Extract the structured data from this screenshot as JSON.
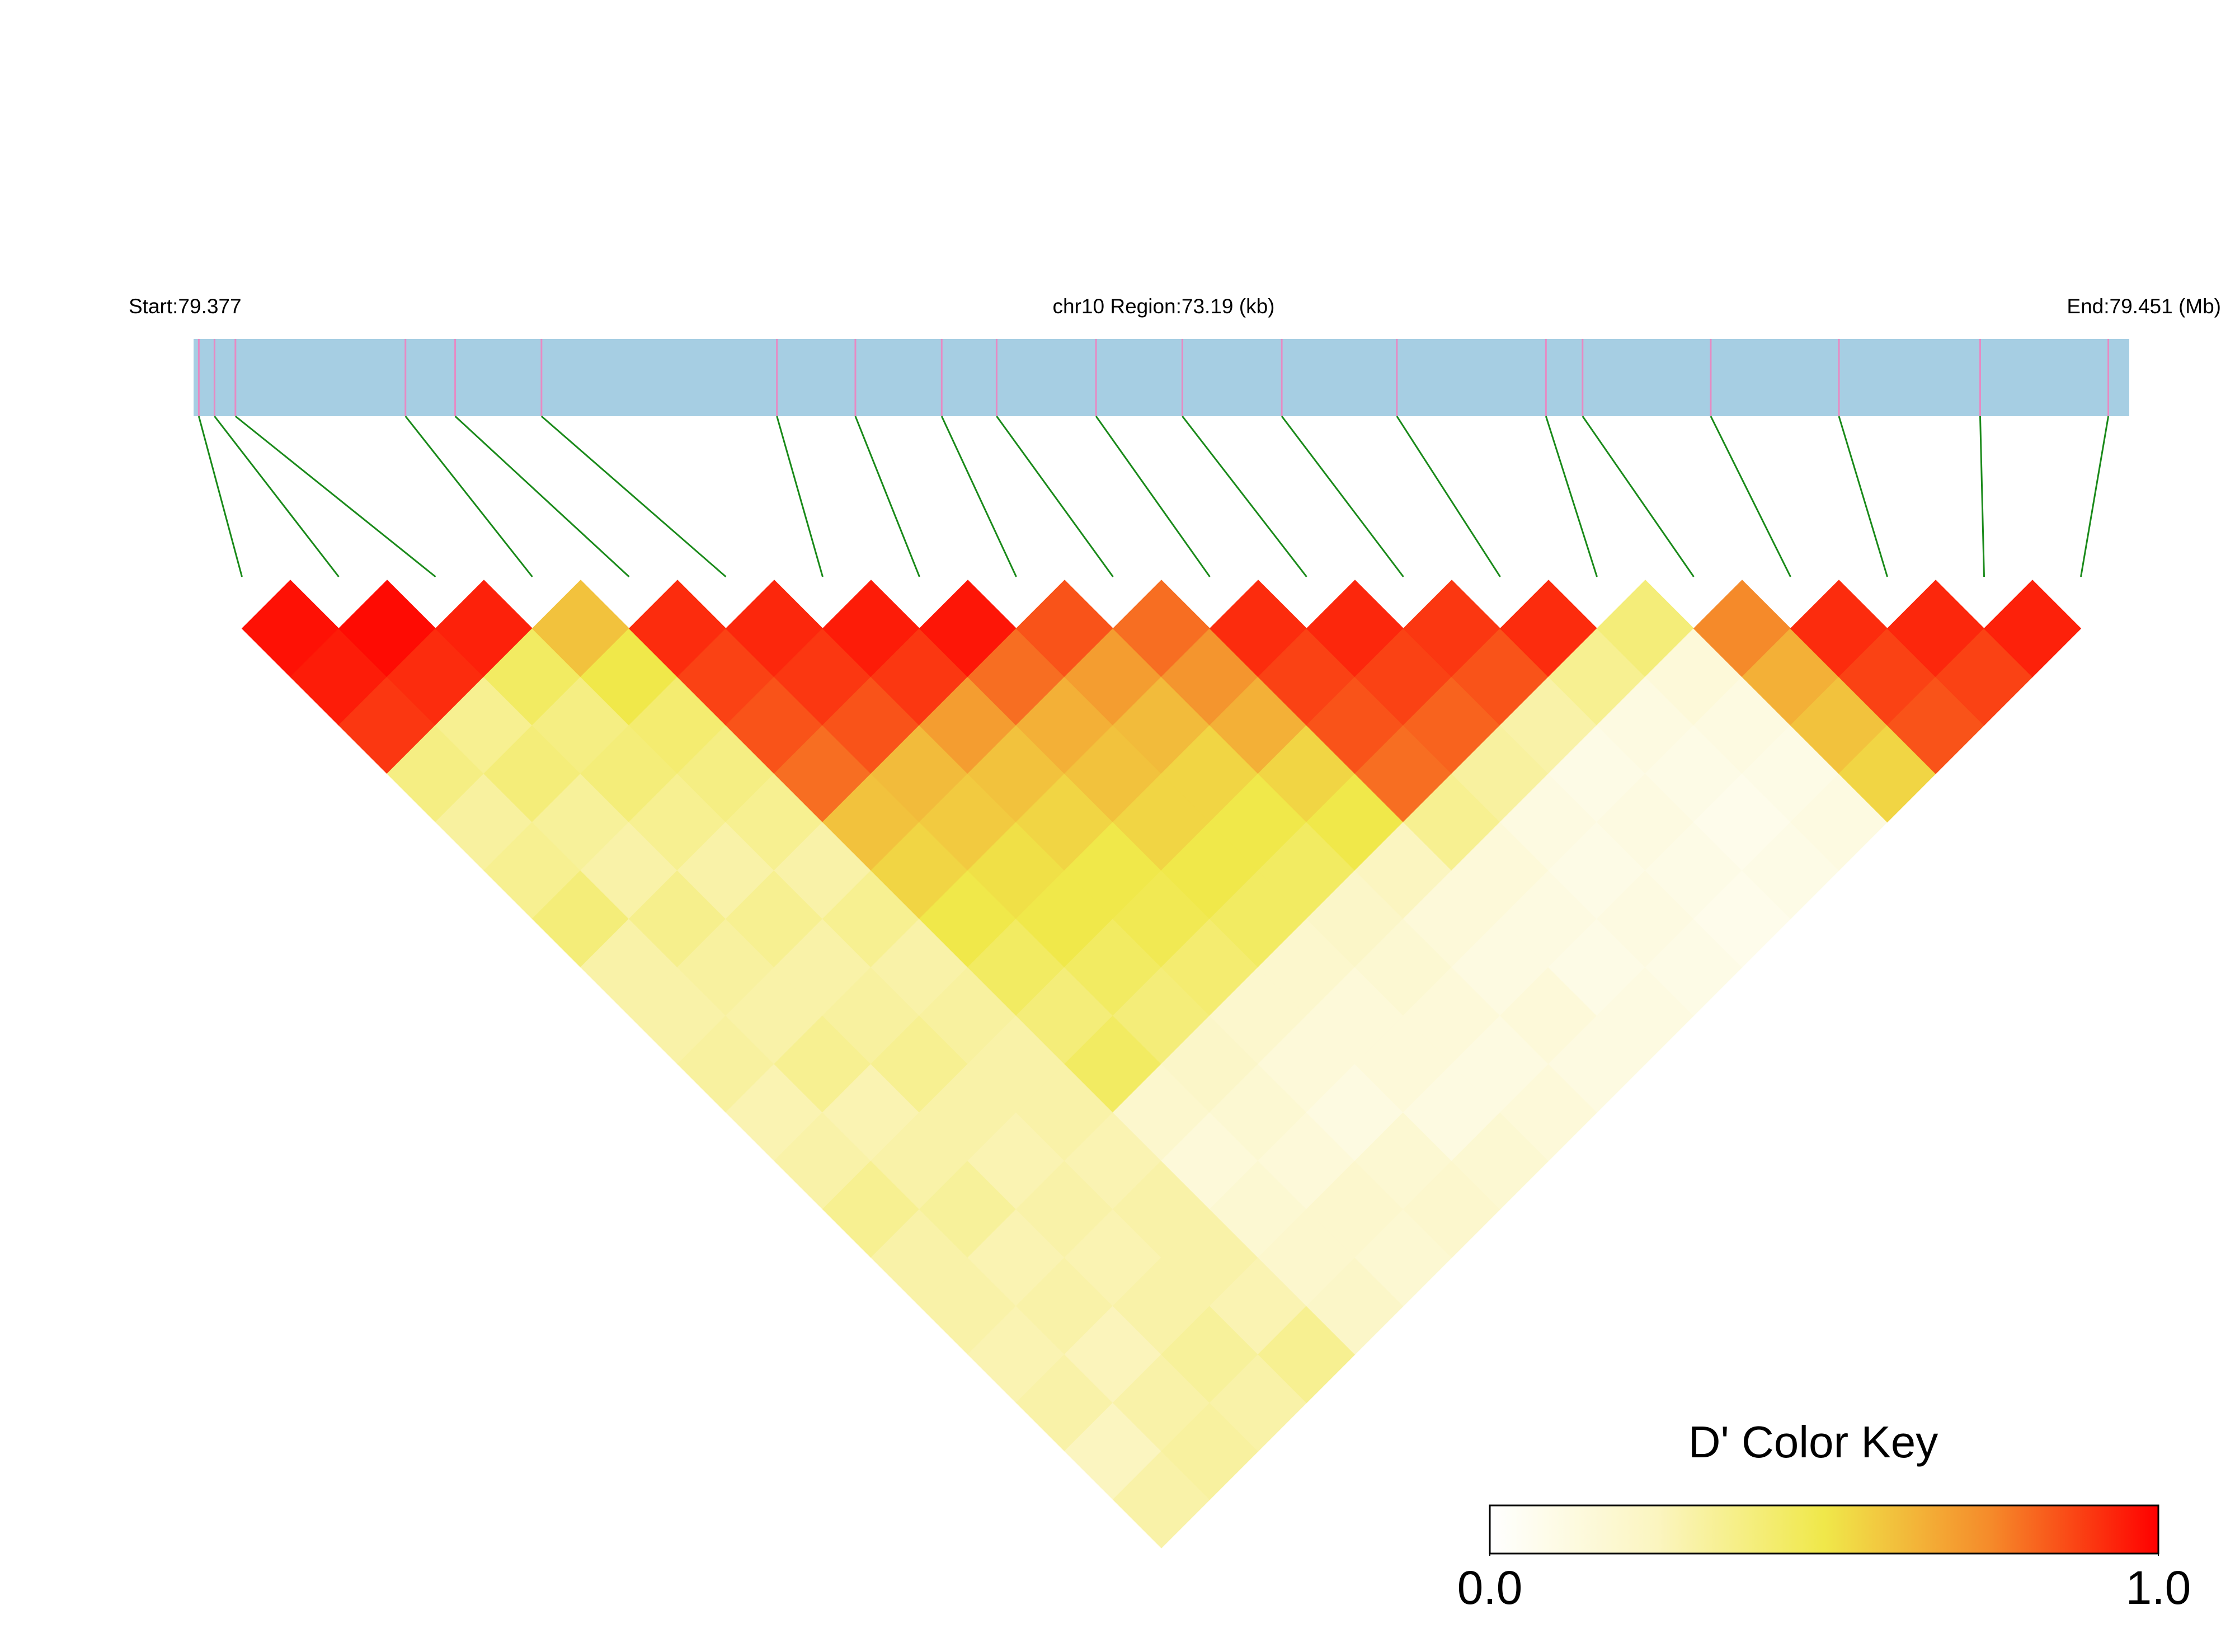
{
  "chart_data": {
    "type": "ld_heatmap",
    "start_label": "Start:79.377",
    "region_label": "chr10 Region:73.19 (kb)",
    "end_label": "End:79.451 (Mb)",
    "xlim": [
      79.377,
      79.451
    ],
    "snp_positions": [
      79.3772,
      79.3778,
      79.3786,
      79.3851,
      79.387,
      79.3903,
      79.3993,
      79.4023,
      79.4056,
      79.4077,
      79.4115,
      79.4148,
      79.4186,
      79.423,
      79.4287,
      79.4301,
      79.435,
      79.4399,
      79.4453,
      79.4502
    ],
    "matrix": [
      [
        0.97,
        0.95,
        0.9,
        0.38,
        0.32,
        0.35,
        0.4,
        0.3,
        0.3,
        0.32,
        0.28,
        0.3,
        0.35,
        0.3,
        0.3,
        0.28,
        0.3,
        0.25,
        0.3
      ],
      [
        0.98,
        0.92,
        0.35,
        0.4,
        0.33,
        0.3,
        0.36,
        0.32,
        0.3,
        0.35,
        0.28,
        0.3,
        0.33,
        0.28,
        0.3,
        0.26,
        0.3,
        0.32
      ],
      [
        0.94,
        0.45,
        0.38,
        0.4,
        0.35,
        0.3,
        0.35,
        0.3,
        0.32,
        0.35,
        0.3,
        0.28,
        0.3,
        0.28,
        0.3,
        0.33,
        0.3
      ],
      [
        0.6,
        0.5,
        0.42,
        0.38,
        0.35,
        0.3,
        0.35,
        0.3,
        0.32,
        0.3,
        0.3,
        0.28,
        0.3,
        0.3,
        0.28,
        0.35
      ],
      [
        0.92,
        0.88,
        0.85,
        0.8,
        0.6,
        0.55,
        0.5,
        0.45,
        0.4,
        0.45,
        0.2,
        0.15,
        0.18,
        0.2,
        0.22
      ],
      [
        0.93,
        0.9,
        0.85,
        0.62,
        0.58,
        0.52,
        0.5,
        0.45,
        0.4,
        0.22,
        0.18,
        0.15,
        0.2,
        0.18
      ],
      [
        0.95,
        0.9,
        0.7,
        0.6,
        0.55,
        0.5,
        0.48,
        0.42,
        0.2,
        0.15,
        0.12,
        0.18,
        0.2
      ],
      [
        0.96,
        0.8,
        0.65,
        0.6,
        0.55,
        0.5,
        0.45,
        0.2,
        0.15,
        0.15,
        0.12,
        0.18
      ],
      [
        0.85,
        0.7,
        0.62,
        0.55,
        0.5,
        0.45,
        0.22,
        0.18,
        0.15,
        0.12,
        0.15
      ],
      [
        0.8,
        0.72,
        0.65,
        0.55,
        0.5,
        0.25,
        0.15,
        0.12,
        0.15,
        0.12
      ],
      [
        0.92,
        0.88,
        0.85,
        0.8,
        0.35,
        0.15,
        0.12,
        0.1,
        0.12
      ],
      [
        0.93,
        0.88,
        0.82,
        0.32,
        0.12,
        0.1,
        0.12,
        0.1
      ],
      [
        0.9,
        0.85,
        0.3,
        0.1,
        0.12,
        0.1,
        0.08
      ],
      [
        0.92,
        0.35,
        0.12,
        0.1,
        0.08,
        0.1
      ],
      [
        0.4,
        0.15,
        0.12,
        0.1,
        0.12
      ],
      [
        0.75,
        0.65,
        0.6,
        0.55
      ],
      [
        0.92,
        0.88,
        0.85
      ],
      [
        0.93,
        0.88
      ],
      [
        0.94
      ]
    ],
    "colors": [
      "#ffffff",
      "#fbf5c0",
      "#f0e84a",
      "#f58a2a",
      "#ff0000"
    ],
    "track_color": "#a6cee3",
    "snp_color": "#e78ac3",
    "link_color": "#1a8a1a",
    "key_title": "D' Color Key",
    "key_lim": [
      0,
      1
    ],
    "key_ticks": [
      {
        "value": 0,
        "label": "0.0"
      },
      {
        "value": 1,
        "label": "1.0"
      }
    ]
  }
}
